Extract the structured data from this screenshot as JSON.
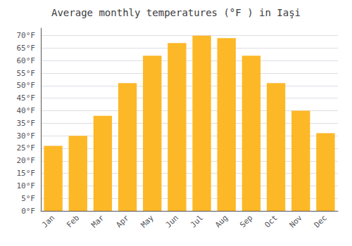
{
  "chart_data": {
    "type": "bar",
    "title": "Average monthly temperatures (°F ) in Iaşi",
    "categories": [
      "Jan",
      "Feb",
      "Mar",
      "Apr",
      "May",
      "Jun",
      "Jul",
      "Aug",
      "Sep",
      "Oct",
      "Nov",
      "Dec"
    ],
    "values": [
      26,
      30,
      38,
      51,
      62,
      67,
      70,
      69,
      62,
      51,
      40,
      31
    ],
    "color": "#FDB827",
    "ylim": [
      0,
      73
    ],
    "yticks": [
      {
        "value": 0,
        "label": "0°F"
      },
      {
        "value": 5,
        "label": "5°F"
      },
      {
        "value": 10,
        "label": "10°F"
      },
      {
        "value": 15,
        "label": "15°F"
      },
      {
        "value": 20,
        "label": "20°F"
      },
      {
        "value": 25,
        "label": "25°F"
      },
      {
        "value": 30,
        "label": "30°F"
      },
      {
        "value": 35,
        "label": "35°F"
      },
      {
        "value": 40,
        "label": "40°F"
      },
      {
        "value": 45,
        "label": "45°F"
      },
      {
        "value": 50,
        "label": "50°F"
      },
      {
        "value": 55,
        "label": "55°F"
      },
      {
        "value": 60,
        "label": "60°F"
      },
      {
        "value": 65,
        "label": "65°F"
      },
      {
        "value": 70,
        "label": "70°F"
      }
    ],
    "grid": true
  }
}
